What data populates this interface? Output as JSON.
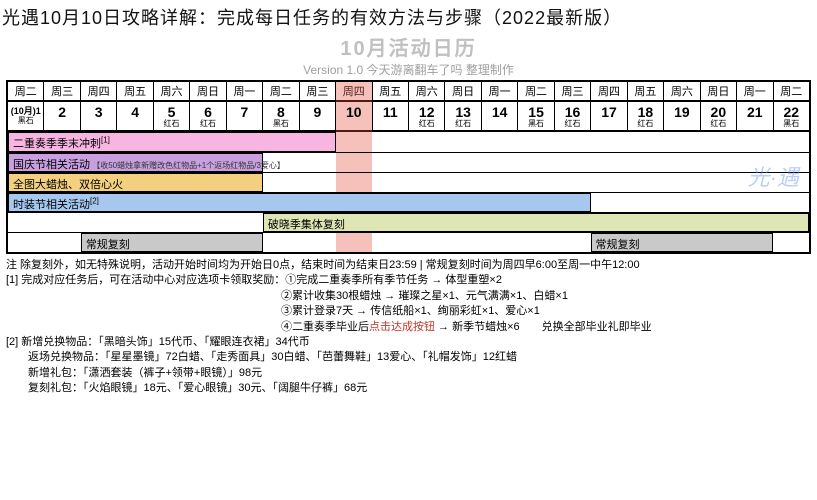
{
  "title": "光遇10月10日攻略详解：完成每日任务的有效方法与步骤（2022最新版）",
  "subheader_big": "10月活动日历",
  "subheader_small": "Version 1.0    今天游离翻车了吗 整理制作",
  "watermark": "光·遇",
  "dow": [
    "周二",
    "周三",
    "周四",
    "周五",
    "周六",
    "周日",
    "周一",
    "周二",
    "周三",
    "周四",
    "周五",
    "周六",
    "周日",
    "周一",
    "周二",
    "周三",
    "周四",
    "周五",
    "周六",
    "周日",
    "周一",
    "周二"
  ],
  "dates": [
    {
      "n": "(10月)1",
      "t": "黑石",
      "first": true
    },
    {
      "n": "2",
      "t": ""
    },
    {
      "n": "3",
      "t": ""
    },
    {
      "n": "4",
      "t": ""
    },
    {
      "n": "5",
      "t": "红石"
    },
    {
      "n": "6",
      "t": "红石"
    },
    {
      "n": "7",
      "t": ""
    },
    {
      "n": "8",
      "t": "黑石"
    },
    {
      "n": "9",
      "t": ""
    },
    {
      "n": "10",
      "t": "",
      "hl": true
    },
    {
      "n": "11",
      "t": ""
    },
    {
      "n": "12",
      "t": "红石"
    },
    {
      "n": "13",
      "t": "红石"
    },
    {
      "n": "14",
      "t": ""
    },
    {
      "n": "15",
      "t": "黑石"
    },
    {
      "n": "16",
      "t": "红石"
    },
    {
      "n": "17",
      "t": ""
    },
    {
      "n": "18",
      "t": "红石"
    },
    {
      "n": "19",
      "t": ""
    },
    {
      "n": "20",
      "t": "红石"
    },
    {
      "n": "21",
      "t": ""
    },
    {
      "n": "22",
      "t": "黑石"
    }
  ],
  "hl_index": 9,
  "total_cols": 22,
  "events": [
    {
      "row": 0,
      "label": "二重奏季季末冲刺",
      "sup": "[1]",
      "start": 0,
      "end": 9,
      "color": "#f7b6e2"
    },
    {
      "row": 1,
      "label": "国庆节相关活动",
      "mini": "【收50蜡烛拿新赠改色红物品+1个返场红物品/3爱心】",
      "start": 0,
      "end": 7,
      "color": "#c8a0e0"
    },
    {
      "row": 2,
      "label": "全图大蜡烛、双倍心火",
      "start": 0,
      "end": 7,
      "color": "#f2d080"
    },
    {
      "row": 3,
      "label": "时装节相关活动",
      "sup": "[2]",
      "start": 0,
      "end": 16,
      "color": "#a6c8ef"
    },
    {
      "row": 4,
      "label": "破晓季集体复刻",
      "start": 7,
      "end": 22,
      "color": "#dfe6b5"
    },
    {
      "row": 5,
      "label": "常规复刻",
      "start": 2,
      "end": 7,
      "color": "#c9c9c9"
    },
    {
      "row": 5,
      "label": "常规复刻",
      "start": 16,
      "end": 21,
      "color": "#c9c9c9"
    }
  ],
  "notes": [
    "注 除复刻外，如无特殊说明，活动开始时间均为开始日0点，结束时间为结束日23:59 | 常规复刻时间为周四早6:00至周一中午12:00",
    "[1] 完成对应任务后，可在活动中心对应选项卡领取奖励：①完成二重奏季所有季节任务 → 体型重塑×2",
    "　　　　　　　　　　　　　　　　　　　　　　　　　②累计收集30根蜡烛 → 璀璨之星×1、元气满满×1、白蜡×1",
    "　　　　　　　　　　　　　　　　　　　　　　　　　③累计登录7天 → 传信纸船×1、绚丽彩虹×1、爱心×1",
    "　　　　　　　　　　　　　　　　　　　　　　　　　④二重奏季毕业后<red>点击达成按钮</red> → 新季节蜡烛×6　　兑换全部毕业礼即毕业",
    "[2] 新增兑换物品：「黑暗头饰」15代币、「耀眼连衣裙」34代币",
    "　　返场兑换物品：「星星墨镜」72白蜡、「走秀面具」30白蜡、「芭蕾舞鞋」13爱心、「礼帽发饰」12红蜡",
    "　　新增礼包：「潇洒套装（裤子+领带+眼镜）」98元",
    "　　复刻礼包：「火焰眼镜」18元、「爱心眼镜」30元、「阔腿牛仔裤」68元"
  ]
}
